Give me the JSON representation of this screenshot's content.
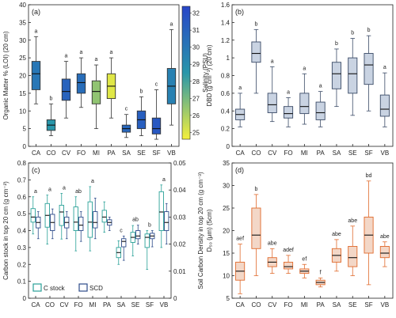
{
  "chart_data": [
    {
      "panel": "(a)",
      "type": "box",
      "categories": [
        "CA",
        "CO",
        "CV",
        "FO",
        "MI",
        "PA",
        "SA",
        "SE",
        "SF",
        "VB"
      ],
      "ylabel": "Organic Matter % (LOI) (20 cm)",
      "ylim": [
        0,
        40
      ],
      "yticks": [
        0,
        5,
        10,
        15,
        20,
        25,
        30,
        35,
        40
      ],
      "letters": [
        "a",
        "b",
        "a",
        "a",
        "a",
        "a",
        "c",
        "b",
        "c",
        "a"
      ],
      "boxes": [
        {
          "min": 12,
          "q1": 16,
          "median": 20.5,
          "q3": 24,
          "max": 31
        },
        {
          "min": 3,
          "q1": 4.5,
          "median": 6,
          "q3": 7.5,
          "max": 12
        },
        {
          "min": 8,
          "q1": 13,
          "median": 15.5,
          "q3": 19,
          "max": 24
        },
        {
          "min": 11,
          "q1": 15,
          "median": 18,
          "q3": 20.5,
          "max": 25
        },
        {
          "min": 5,
          "q1": 12,
          "median": 15.5,
          "q3": 18.5,
          "max": 23
        },
        {
          "min": 8,
          "q1": 13.5,
          "median": 17,
          "q3": 20.5,
          "max": 25
        },
        {
          "min": 2.5,
          "q1": 4,
          "median": 5,
          "q3": 6,
          "max": 9
        },
        {
          "min": 3,
          "q1": 5,
          "median": 7.5,
          "q3": 10,
          "max": 14
        },
        {
          "min": 2,
          "q1": 3.5,
          "median": 5,
          "q3": 8,
          "max": 16
        },
        {
          "min": 6,
          "q1": 12,
          "median": 17,
          "q3": 22,
          "max": 33
        }
      ],
      "salinity_psu": [
        30.0,
        28.5,
        31.0,
        30.5,
        26.5,
        25.0,
        30.8,
        31.2,
        31.5,
        29.5
      ],
      "colorbar": {
        "label": "Salinity (PSU)",
        "range": [
          24.6,
          32.4
        ],
        "ticks": [
          25,
          26,
          27,
          28,
          29,
          30,
          31,
          32
        ]
      }
    },
    {
      "panel": "(b)",
      "type": "box",
      "categories": [
        "CA",
        "CO",
        "CV",
        "FO",
        "MI",
        "PA",
        "SA",
        "SE",
        "SF",
        "VB"
      ],
      "ylabel": "DBD (g cm⁻³) (20 cm)",
      "ylim": [
        0,
        1.6
      ],
      "yticks": [
        0,
        0.2,
        0.4,
        0.6,
        0.8,
        1,
        1.2,
        1.4,
        1.6
      ],
      "letters": [
        "a",
        "b",
        "a",
        "a",
        "a",
        "a",
        "b",
        "b",
        "b",
        "a"
      ],
      "boxes": [
        {
          "min": 0.22,
          "q1": 0.3,
          "median": 0.36,
          "q3": 0.42,
          "max": 0.6
        },
        {
          "min": 0.6,
          "q1": 0.95,
          "median": 1.05,
          "q3": 1.18,
          "max": 1.32
        },
        {
          "min": 0.28,
          "q1": 0.38,
          "median": 0.47,
          "q3": 0.6,
          "max": 0.9
        },
        {
          "min": 0.22,
          "q1": 0.32,
          "median": 0.37,
          "q3": 0.45,
          "max": 0.55
        },
        {
          "min": 0.25,
          "q1": 0.37,
          "median": 0.45,
          "q3": 0.6,
          "max": 0.82
        },
        {
          "min": 0.22,
          "q1": 0.3,
          "median": 0.38,
          "q3": 0.5,
          "max": 0.62
        },
        {
          "min": 0.45,
          "q1": 0.65,
          "median": 0.82,
          "q3": 0.95,
          "max": 1.1
        },
        {
          "min": 0.35,
          "q1": 0.6,
          "median": 0.82,
          "q3": 1.0,
          "max": 1.22
        },
        {
          "min": 0.4,
          "q1": 0.7,
          "median": 0.92,
          "q3": 1.05,
          "max": 1.25
        },
        {
          "min": 0.22,
          "q1": 0.34,
          "median": 0.42,
          "q3": 0.58,
          "max": 0.83
        }
      ],
      "box_fill": "#c9d3e2",
      "box_stroke": "#3a4a66"
    },
    {
      "panel": "(c)",
      "type": "box",
      "categories": [
        "CA",
        "CO",
        "CV",
        "FO",
        "MI",
        "PA",
        "SA",
        "SE",
        "SF",
        "VB"
      ],
      "ylabel": "Carbon stock in top 20 cm (g cm⁻²)",
      "ylabel_right": "Soil Carbon Density in top 20 cm (g cm⁻³)",
      "ylim": [
        0,
        0.8
      ],
      "yticks": [
        0,
        0.1,
        0.2,
        0.3,
        0.4,
        0.5,
        0.6,
        0.7,
        0.8
      ],
      "ylim_right": [
        0,
        0.05
      ],
      "yticks_right": [
        0,
        0.01,
        0.02,
        0.03,
        0.04,
        0.05
      ],
      "letters": [
        "a",
        "a",
        "a",
        "ab",
        "a",
        "",
        "c",
        "ab",
        "b",
        "a"
      ],
      "series": [
        {
          "name": "C stock",
          "color": "#2aa198",
          "boxes": [
            {
              "min": 0.38,
              "q1": 0.45,
              "median": 0.48,
              "q3": 0.53,
              "max": 0.6
            },
            {
              "min": 0.32,
              "q1": 0.42,
              "median": 0.49,
              "q3": 0.56,
              "max": 0.61
            },
            {
              "min": 0.35,
              "q1": 0.43,
              "median": 0.51,
              "q3": 0.55,
              "max": 0.62
            },
            {
              "min": 0.28,
              "q1": 0.4,
              "median": 0.45,
              "q3": 0.54,
              "max": 0.6
            },
            {
              "min": 0.28,
              "q1": 0.36,
              "median": 0.45,
              "q3": 0.57,
              "max": 0.66
            },
            {
              "min": 0.39,
              "q1": 0.45,
              "median": 0.48,
              "q3": 0.52,
              "max": 0.57
            },
            {
              "min": 0.2,
              "q1": 0.24,
              "median": 0.27,
              "q3": 0.3,
              "max": 0.34
            },
            {
              "min": 0.25,
              "q1": 0.33,
              "median": 0.36,
              "q3": 0.39,
              "max": 0.43
            },
            {
              "min": 0.17,
              "q1": 0.3,
              "median": 0.36,
              "q3": 0.38,
              "max": 0.4
            },
            {
              "min": 0.3,
              "q1": 0.4,
              "median": 0.51,
              "q3": 0.63,
              "max": 0.67
            }
          ]
        },
        {
          "name": "SCD",
          "color": "#2d4b8a",
          "boxes": [
            {
              "min": 0.022,
              "q1": 0.026,
              "median": 0.028,
              "q3": 0.03,
              "max": 0.032
            },
            {
              "min": 0.022,
              "q1": 0.025,
              "median": 0.028,
              "q3": 0.031,
              "max": 0.033
            },
            {
              "min": 0.022,
              "q1": 0.026,
              "median": 0.028,
              "q3": 0.03,
              "max": 0.032
            },
            {
              "min": 0.021,
              "q1": 0.025,
              "median": 0.027,
              "q3": 0.03,
              "max": 0.032
            },
            {
              "min": 0.022,
              "q1": 0.026,
              "median": 0.028,
              "q3": 0.032,
              "max": 0.037
            },
            {
              "min": 0.025,
              "q1": 0.027,
              "median": 0.028,
              "q3": 0.029,
              "max": 0.03
            },
            {
              "min": 0.014,
              "q1": 0.019,
              "median": 0.021,
              "q3": 0.022,
              "max": 0.023
            },
            {
              "min": 0.02,
              "q1": 0.022,
              "median": 0.023,
              "q3": 0.025,
              "max": 0.027
            },
            {
              "min": 0.019,
              "q1": 0.022,
              "median": 0.023,
              "q3": 0.024,
              "max": 0.025
            },
            {
              "min": 0.02,
              "q1": 0.025,
              "median": 0.028,
              "q3": 0.032,
              "max": 0.035
            }
          ]
        }
      ],
      "legend": {
        "position": "bottom-left"
      }
    },
    {
      "panel": "(d)",
      "type": "box",
      "categories": [
        "CA",
        "CO",
        "CV",
        "FO",
        "MI",
        "PA",
        "SA",
        "SE",
        "SF",
        "VB"
      ],
      "ylabel": "D₅₀ (μm) (5cm)",
      "ylim": [
        5,
        35
      ],
      "yticks": [
        5,
        10,
        15,
        20,
        25,
        30,
        35
      ],
      "letters": [
        "aef",
        "b",
        "abe",
        "adef",
        "ef",
        "f",
        "abe",
        "abe",
        "bd",
        "abe"
      ],
      "boxes": [
        {
          "min": 6,
          "q1": 9,
          "median": 11,
          "q3": 13,
          "max": 17
        },
        {
          "min": 10,
          "q1": 16,
          "median": 19,
          "q3": 25,
          "max": 28
        },
        {
          "min": 10.5,
          "q1": 12,
          "median": 13,
          "q3": 14,
          "max": 16
        },
        {
          "min": 10.5,
          "q1": 11.5,
          "median": 12,
          "q3": 13,
          "max": 14.5
        },
        {
          "min": 9.5,
          "q1": 10.5,
          "median": 11,
          "q3": 11.5,
          "max": 12.5
        },
        {
          "min": 7.5,
          "q1": 8,
          "median": 8.5,
          "q3": 9,
          "max": 9.5
        },
        {
          "min": 11,
          "q1": 13,
          "median": 14.5,
          "q3": 16,
          "max": 18
        },
        {
          "min": 10,
          "q1": 12,
          "median": 14,
          "q3": 16.5,
          "max": 21
        },
        {
          "min": 8,
          "q1": 15,
          "median": 19,
          "q3": 23,
          "max": 31
        },
        {
          "min": 12,
          "q1": 14,
          "median": 15,
          "q3": 16.5,
          "max": 17.5
        }
      ],
      "box_fill": "#f3d7c7",
      "box_stroke": "#e06a2c"
    }
  ]
}
